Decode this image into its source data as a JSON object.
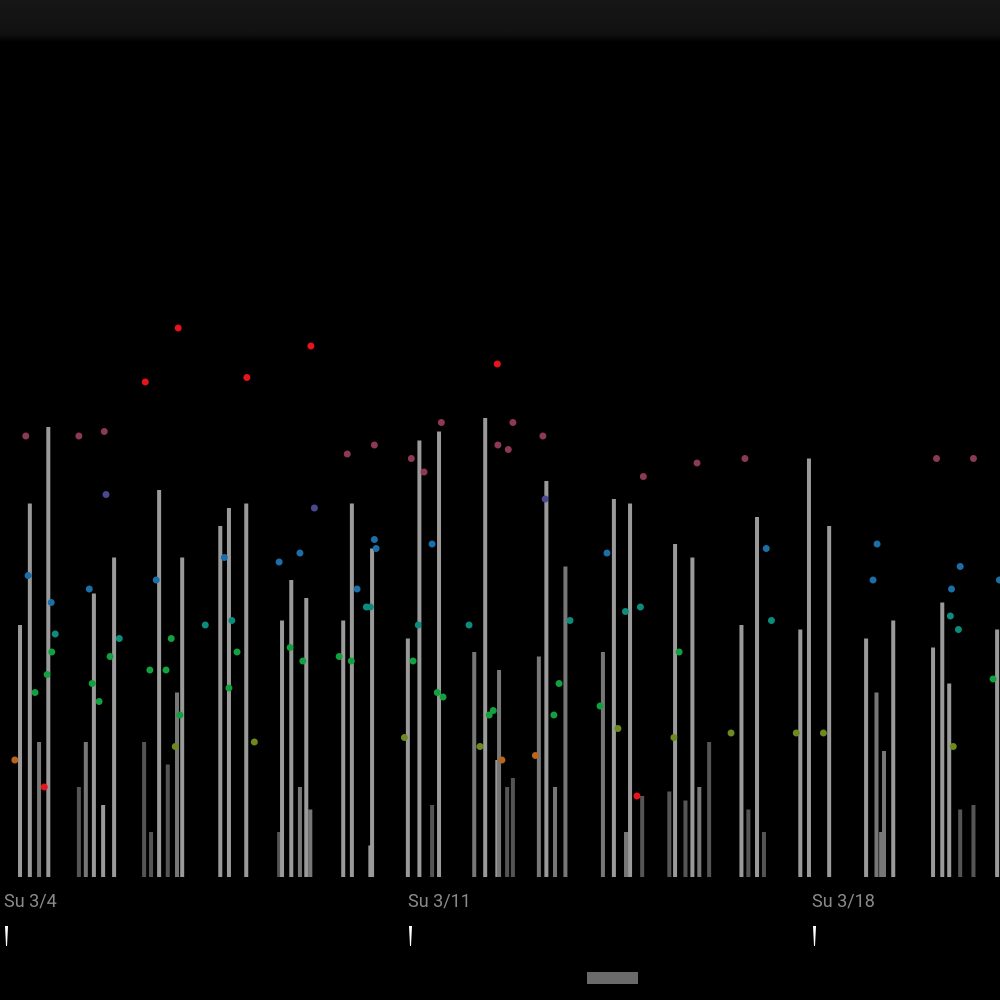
{
  "chart_data": {
    "type": "timeline",
    "xlim": [
      -0.087,
      17.24
    ],
    "ylim": [
      0,
      125
    ],
    "xticks": [
      {
        "value": 0,
        "label": "Su 3/4"
      },
      {
        "value": 7,
        "label": "Su 3/11"
      },
      {
        "value": 14,
        "label": "Su 3/18"
      }
    ],
    "bars": {
      "x": [
        0.26,
        0.43,
        0.59,
        0.75,
        1.28,
        1.4,
        1.54,
        1.7,
        1.89,
        2.41,
        2.53,
        2.67,
        2.82,
        2.98,
        3.07,
        3.73,
        3.88,
        4.18,
        4.75,
        4.8,
        4.96,
        5.11,
        5.22,
        5.29,
        5.86,
        6.01,
        6.33,
        6.36,
        6.98,
        7.18,
        7.4,
        7.52,
        8.13,
        8.32,
        8.53,
        8.56,
        8.7,
        8.8,
        9.25,
        9.38,
        9.53,
        9.71,
        10.36,
        10.55,
        10.76,
        10.83,
        11.04,
        11.51,
        11.61,
        11.79,
        11.91,
        12.03,
        12.2,
        12.76,
        12.88,
        13.03,
        13.15,
        13.78,
        13.93,
        14.28,
        14.92,
        15.1,
        15.18,
        15.23,
        15.39,
        16.08,
        16.24,
        16.36,
        16.55,
        16.78,
        17.19
      ],
      "values": [
        56,
        83,
        30,
        100,
        20,
        30,
        63,
        16,
        71,
        30,
        10,
        86,
        25,
        41,
        71,
        78,
        82,
        83,
        10,
        57,
        66,
        20,
        62,
        15,
        57,
        83,
        7,
        73,
        53,
        97,
        16,
        99,
        50,
        102,
        26,
        46,
        20,
        22,
        49,
        88,
        20,
        69,
        50,
        84,
        10,
        83,
        18,
        19,
        74,
        17,
        71,
        20,
        30,
        56,
        15,
        80,
        10,
        55,
        93,
        78,
        53,
        41,
        10,
        28,
        57,
        51,
        61,
        43,
        15,
        16,
        55
      ],
      "colors": [
        "#9a9a9a",
        "#9a9a9a",
        "#777777",
        "#9a9a9a",
        "#555555",
        "#777777",
        "#9a9a9a",
        "#9a9a9a",
        "#9a9a9a",
        "#555555",
        "#555555",
        "#9a9a9a",
        "#555555",
        "#777777",
        "#9a9a9a",
        "#9a9a9a",
        "#9a9a9a",
        "#9a9a9a",
        "#555555",
        "#9a9a9a",
        "#9a9a9a",
        "#777777",
        "#9a9a9a",
        "#777777",
        "#9a9a9a",
        "#9a9a9a",
        "#9a9a9a",
        "#9a9a9a",
        "#9a9a9a",
        "#9a9a9a",
        "#555555",
        "#9a9a9a",
        "#777777",
        "#9a9a9a",
        "#9a9a9a",
        "#777777",
        "#555555",
        "#555555",
        "#777777",
        "#9a9a9a",
        "#777777",
        "#777777",
        "#777777",
        "#9a9a9a",
        "#777777",
        "#9a9a9a",
        "#555555",
        "#555555",
        "#9a9a9a",
        "#555555",
        "#9a9a9a",
        "#777777",
        "#555555",
        "#9a9a9a",
        "#555555",
        "#9a9a9a",
        "#555555",
        "#9a9a9a",
        "#9a9a9a",
        "#9a9a9a",
        "#9a9a9a",
        "#777777",
        "#777777",
        "#777777",
        "#9a9a9a",
        "#9a9a9a",
        "#9a9a9a",
        "#9a9a9a",
        "#555555",
        "#555555",
        "#9a9a9a"
      ]
    },
    "dots": {
      "x": [
        0.17,
        0.36,
        0.4,
        0.52,
        0.68,
        0.73,
        0.8,
        0.81,
        0.87,
        1.28,
        1.46,
        1.51,
        1.63,
        1.72,
        1.75,
        1.82,
        1.98,
        2.43,
        2.51,
        2.62,
        2.79,
        2.88,
        2.95,
        3.0,
        3.03,
        3.47,
        3.8,
        3.88,
        3.93,
        4.02,
        4.19,
        4.32,
        4.75,
        4.94,
        5.11,
        5.16,
        5.3,
        5.36,
        5.79,
        5.93,
        6.0,
        6.1,
        6.26,
        6.33,
        6.4,
        6.4,
        6.43,
        6.92,
        7.04,
        7.07,
        7.16,
        7.26,
        7.4,
        7.49,
        7.56,
        7.59,
        8.04,
        8.23,
        8.39,
        8.46,
        8.53,
        8.54,
        8.61,
        8.72,
        8.8,
        9.19,
        9.32,
        9.36,
        9.51,
        9.6,
        9.79,
        10.31,
        10.43,
        10.62,
        10.75,
        10.95,
        11.01,
        11.06,
        11.59,
        11.68,
        11.99,
        12.58,
        12.82,
        13.19,
        13.28,
        13.71,
        14.18,
        15.04,
        15.11,
        16.14,
        16.38,
        16.4,
        16.43,
        16.52,
        16.55,
        16.78,
        17.12,
        17.23
      ],
      "values": [
        26,
        98,
        67,
        41,
        20,
        45,
        61,
        50,
        54,
        98,
        64,
        43,
        39,
        99,
        85,
        49,
        53,
        110,
        46,
        66,
        46,
        53,
        29,
        122,
        36,
        56,
        71,
        42,
        57,
        50,
        111,
        30,
        70,
        51,
        72,
        48,
        118,
        82,
        49,
        94,
        48,
        64,
        60,
        60,
        96,
        75,
        73,
        31,
        93,
        48,
        56,
        90,
        74,
        41,
        101,
        40,
        56,
        29,
        36,
        37,
        114,
        96,
        26,
        95,
        101,
        27,
        98,
        84,
        36,
        43,
        57,
        38,
        72,
        33,
        59,
        18,
        60,
        89,
        31,
        50,
        92,
        32,
        93,
        73,
        57,
        32,
        32,
        66,
        74,
        93,
        58,
        64,
        29,
        55,
        69,
        93,
        44,
        66
      ],
      "colors": [
        "#b8661a",
        "#8c3858",
        "#1c6ea8",
        "#12a040",
        "#e8141c",
        "#12a040",
        "#1c6ea8",
        "#12a040",
        "#0c8c7c",
        "#8c3858",
        "#1c6ea8",
        "#12a040",
        "#12a040",
        "#8c3858",
        "#4a4a90",
        "#12a040",
        "#0c8c7c",
        "#e8141c",
        "#12a040",
        "#1c6ea8",
        "#12a040",
        "#12a040",
        "#6e8a1e",
        "#e8141c",
        "#12a040",
        "#0c8c7c",
        "#1c6ea8",
        "#12a040",
        "#0c8c7c",
        "#12a040",
        "#e8141c",
        "#6e8a1e",
        "#1c6ea8",
        "#12a040",
        "#1c6ea8",
        "#12a040",
        "#e8141c",
        "#4a4a90",
        "#12a040",
        "#8c3858",
        "#12a040",
        "#1c6ea8",
        "#0c8c7c",
        "#0c8c7c",
        "#8c3858",
        "#1c6ea8",
        "#1c6ea8",
        "#6e8a1e",
        "#8c3858",
        "#12a040",
        "#0c8c7c",
        "#8c3858",
        "#1c6ea8",
        "#12a040",
        "#8c3858",
        "#12a040",
        "#0c8c7c",
        "#6e8a1e",
        "#12a040",
        "#12a040",
        "#e8141c",
        "#8c3858",
        "#b8661a",
        "#8c3858",
        "#8c3858",
        "#b8661a",
        "#8c3858",
        "#4a4a90",
        "#12a040",
        "#12a040",
        "#0c8c7c",
        "#12a040",
        "#1c6ea8",
        "#6e8a1e",
        "#0c8c7c",
        "#e8141c",
        "#0c8c7c",
        "#8c3858",
        "#6e8a1e",
        "#12a040",
        "#8c3858",
        "#6e8a1e",
        "#8c3858",
        "#1c6ea8",
        "#0c8c7c",
        "#6e8a1e",
        "#6e8a1e",
        "#1c6ea8",
        "#1c6ea8",
        "#8c3858",
        "#0c8c7c",
        "#1c6ea8",
        "#6e8a1e",
        "#0c8c7c",
        "#1c6ea8",
        "#8c3858",
        "#12a040",
        "#1c6ea8"
      ]
    }
  }
}
